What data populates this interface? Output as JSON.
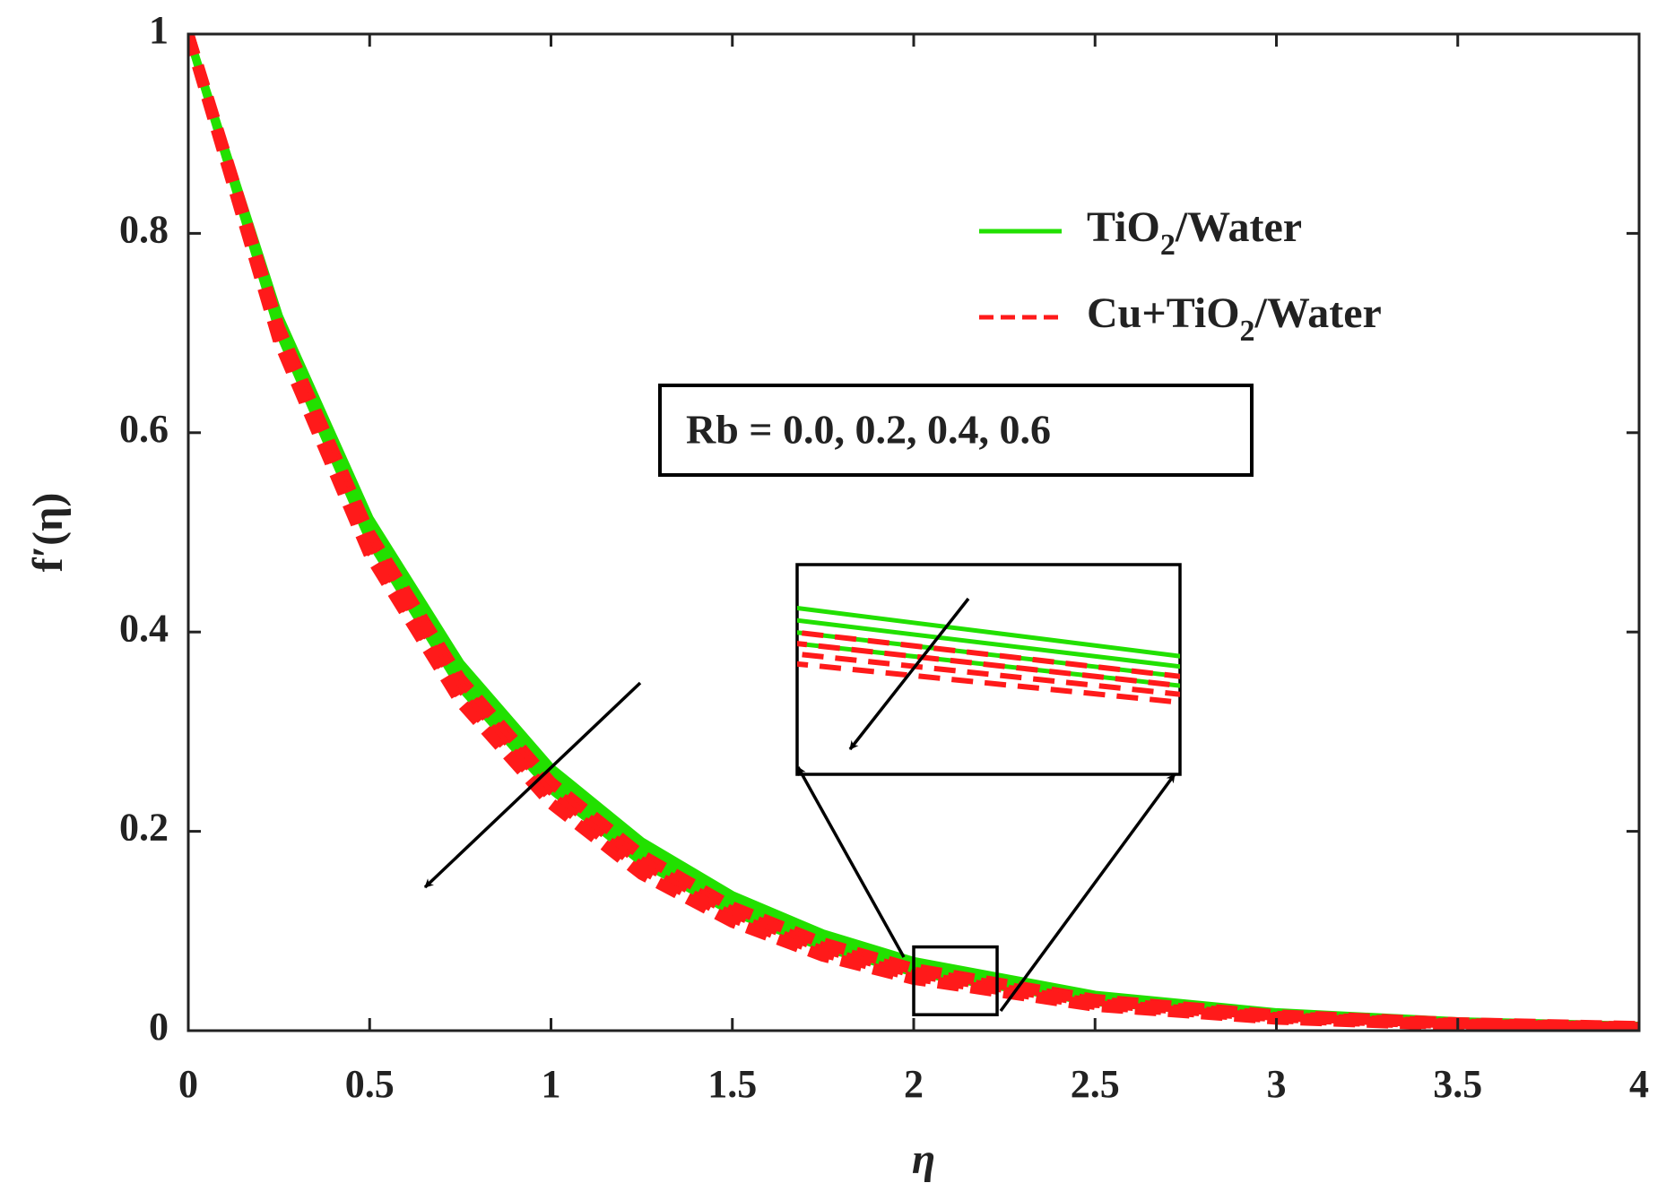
{
  "chart_data": {
    "type": "line",
    "xlabel": "η",
    "ylabel": "f′(η)",
    "annotation": "Rb = 0.0, 0.2, 0.4, 0.6",
    "x": [
      0,
      0.25,
      0.5,
      0.75,
      1,
      1.25,
      1.5,
      1.75,
      2,
      2.5,
      3,
      3.5,
      4
    ],
    "series": [
      {
        "color": "#22e000",
        "dash": false,
        "values": [
          1,
          0.717,
          0.514,
          0.369,
          0.264,
          0.19,
          0.136,
          0.0975,
          0.0699,
          0.036,
          0.0185,
          0.0095,
          0.0049
        ]
      },
      {
        "color": "#22e000",
        "dash": false,
        "values": [
          1,
          0.712,
          0.507,
          0.361,
          0.257,
          0.183,
          0.13,
          0.0926,
          0.0659,
          0.0334,
          0.0169,
          0.0086,
          0.0043
        ]
      },
      {
        "color": "#22e000",
        "dash": false,
        "values": [
          1,
          0.706,
          0.499,
          0.353,
          0.249,
          0.176,
          0.124,
          0.0878,
          0.062,
          0.031,
          0.0155,
          0.0077,
          0.0038
        ]
      },
      {
        "color": "#22e000",
        "dash": false,
        "values": [
          1,
          0.701,
          0.492,
          0.345,
          0.242,
          0.169,
          0.119,
          0.0833,
          0.0584,
          0.0287,
          0.0141,
          0.0069,
          0.0034
        ]
      },
      {
        "color": "#ff1a1a",
        "dash": true,
        "values": [
          1,
          0.706,
          0.499,
          0.353,
          0.249,
          0.176,
          0.124,
          0.0878,
          0.062,
          0.031,
          0.0155,
          0.0077,
          0.0038
        ]
      },
      {
        "color": "#ff1a1a",
        "dash": true,
        "values": [
          1,
          0.701,
          0.492,
          0.345,
          0.242,
          0.169,
          0.119,
          0.0833,
          0.0584,
          0.0287,
          0.0141,
          0.0069,
          0.0034
        ]
      },
      {
        "color": "#ff1a1a",
        "dash": true,
        "values": [
          1,
          0.696,
          0.484,
          0.337,
          0.235,
          0.163,
          0.114,
          0.0791,
          0.055,
          0.0266,
          0.0129,
          0.0063,
          0.003
        ]
      },
      {
        "color": "#ff1a1a",
        "dash": true,
        "values": [
          1,
          0.691,
          0.477,
          0.33,
          0.228,
          0.157,
          0.109,
          0.075,
          0.0518,
          0.0247,
          0.0118,
          0.0056,
          0.0027
        ]
      }
    ],
    "legend": [
      {
        "text": "TiO",
        "sub": "2",
        "after": "/Water",
        "color": "#22e000",
        "dash": false
      },
      {
        "text": "Cu+TiO",
        "sub": "2",
        "after": "/Water",
        "color": "#ff1a1a",
        "dash": true
      }
    ],
    "inset": {
      "xlim": [
        2,
        2.23
      ],
      "ylim": [
        0.016,
        0.084
      ]
    },
    "xlim": [
      0,
      4
    ],
    "ylim": [
      0,
      1
    ],
    "xticks": [
      0,
      0.5,
      1,
      1.5,
      2,
      2.5,
      3,
      3.5,
      4
    ],
    "yticks": [
      0,
      0.2,
      0.4,
      0.6,
      0.8,
      1
    ]
  }
}
